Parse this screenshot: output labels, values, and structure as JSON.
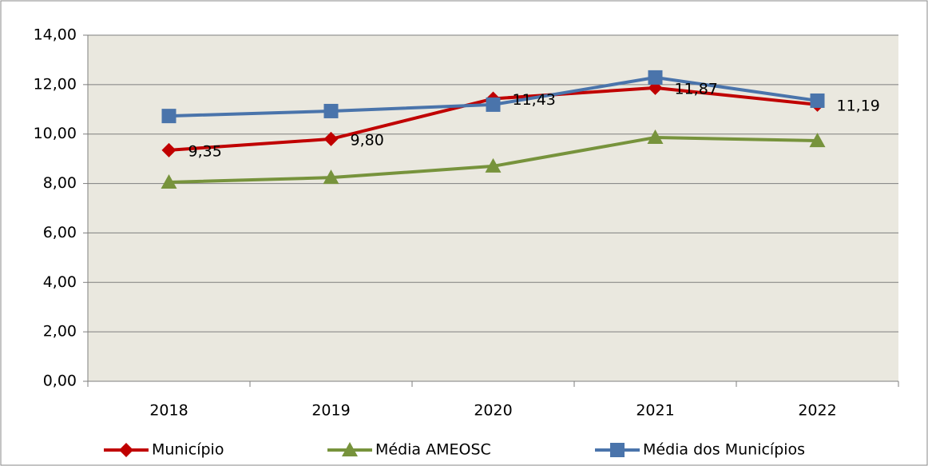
{
  "chart_data": {
    "type": "line",
    "categories": [
      "2018",
      "2019",
      "2020",
      "2021",
      "2022"
    ],
    "series": [
      {
        "name": "Município",
        "color": "#c00000",
        "marker": "diamond",
        "values": [
          9.35,
          9.8,
          11.43,
          11.87,
          11.19
        ],
        "value_labels": [
          "9,35",
          "9,80",
          "11,43",
          "11,87",
          "11,19"
        ]
      },
      {
        "name": "Média AMEOSC",
        "color": "#77933c",
        "marker": "triangle",
        "values": [
          8.05,
          8.24,
          8.7,
          9.86,
          9.73
        ]
      },
      {
        "name": "Média dos Municípios",
        "color": "#4a74ab",
        "marker": "square",
        "values": [
          10.73,
          10.93,
          11.19,
          12.29,
          11.35
        ]
      }
    ],
    "ylim": [
      0,
      14
    ],
    "yticks": [
      {
        "value": 0,
        "label": "0,00"
      },
      {
        "value": 2,
        "label": "2,00"
      },
      {
        "value": 4,
        "label": "4,00"
      },
      {
        "value": 6,
        "label": "6,00"
      },
      {
        "value": 8,
        "label": "8,00"
      },
      {
        "value": 10,
        "label": "10,00"
      },
      {
        "value": 12,
        "label": "12,00"
      },
      {
        "value": 14,
        "label": "14,00"
      }
    ],
    "grid": true,
    "legend": "bottom"
  }
}
